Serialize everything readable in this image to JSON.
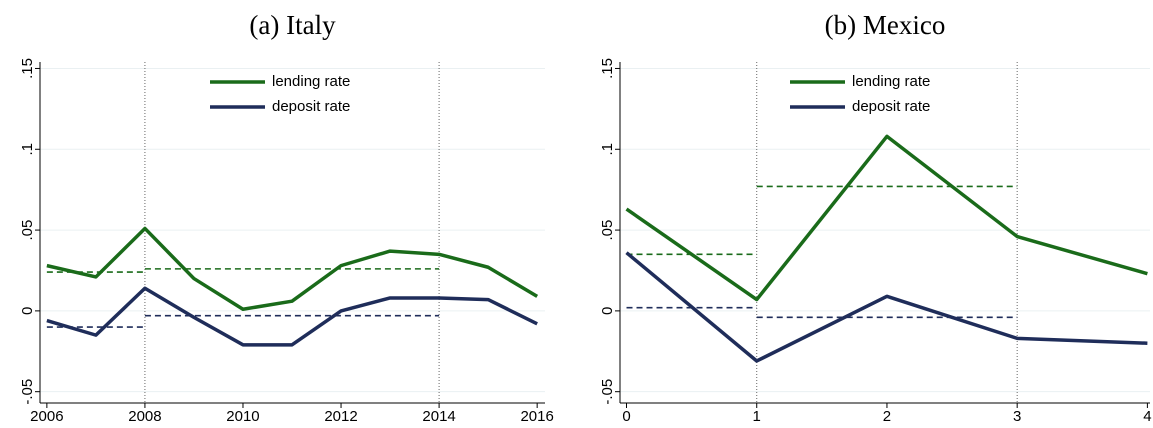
{
  "chart_data": [
    {
      "type": "line",
      "title": "(a) Italy",
      "x": [
        2006,
        2007,
        2008,
        2009,
        2010,
        2011,
        2012,
        2013,
        2014,
        2015,
        2016
      ],
      "series": [
        {
          "name": "lending rate",
          "color": "#1a6b1a",
          "values": [
            0.028,
            0.021,
            0.051,
            0.02,
            0.001,
            0.006,
            0.028,
            0.037,
            0.035,
            0.027,
            0.009
          ]
        },
        {
          "name": "deposit rate",
          "color": "#1f2d5a",
          "values": [
            -0.006,
            -0.015,
            0.014,
            -0.004,
            -0.021,
            -0.021,
            0,
            0.008,
            0.008,
            0.007,
            -0.008
          ]
        }
      ],
      "reference_segments": [
        {
          "color": "#1a6b1a",
          "x": [
            2006,
            2008
          ],
          "values": [
            0.024,
            0.024
          ]
        },
        {
          "color": "#1a6b1a",
          "x": [
            2008,
            2014
          ],
          "values": [
            0.026,
            0.026
          ]
        },
        {
          "color": "#1f2d5a",
          "x": [
            2006,
            2008
          ],
          "values": [
            -0.01,
            -0.01
          ]
        },
        {
          "color": "#1f2d5a",
          "x": [
            2008,
            2014
          ],
          "values": [
            -0.003,
            -0.003
          ]
        }
      ],
      "vlines": [
        2008,
        2014
      ],
      "xlim": [
        2005.86,
        2016.16
      ],
      "xticks": [
        2006,
        2008,
        2010,
        2012,
        2014,
        2016
      ],
      "ylim": [
        -0.057,
        0.154
      ],
      "yticks": [
        {
          "value": -0.05,
          "label": "-.05"
        },
        0,
        {
          "value": 0.05,
          "label": ".05"
        },
        {
          "value": 0.1,
          "label": ".1"
        },
        {
          "value": 0.15,
          "label": ".15"
        }
      ],
      "grid": true
    },
    {
      "type": "line",
      "title": "(b) Mexico",
      "x": [
        0,
        1,
        2,
        3,
        4
      ],
      "series": [
        {
          "name": "lending rate",
          "color": "#1a6b1a",
          "values": [
            0.063,
            0.007,
            0.108,
            0.046,
            0.023
          ]
        },
        {
          "name": "deposit rate",
          "color": "#1f2d5a",
          "values": [
            0.036,
            -0.031,
            0.009,
            -0.017,
            -0.02
          ]
        }
      ],
      "reference_segments": [
        {
          "color": "#1a6b1a",
          "x": [
            0,
            1
          ],
          "values": [
            0.035,
            0.035
          ]
        },
        {
          "color": "#1a6b1a",
          "x": [
            1,
            3
          ],
          "values": [
            0.077,
            0.077
          ]
        },
        {
          "color": "#1f2d5a",
          "x": [
            0,
            1
          ],
          "values": [
            0.002,
            0.002
          ]
        },
        {
          "color": "#1f2d5a",
          "x": [
            1,
            3
          ],
          "values": [
            -0.004,
            -0.004
          ]
        }
      ],
      "vlines": [
        1,
        3
      ],
      "xlim": [
        -0.05,
        4.02
      ],
      "xticks": [
        0,
        1,
        2,
        3,
        4
      ],
      "ylim": [
        -0.057,
        0.154
      ],
      "yticks": [
        {
          "value": -0.05,
          "label": "-.05"
        },
        0,
        {
          "value": 0.05,
          "label": ".05"
        },
        {
          "value": 0.1,
          "label": ".1"
        },
        {
          "value": 0.15,
          "label": ".15"
        }
      ],
      "grid": true
    }
  ]
}
